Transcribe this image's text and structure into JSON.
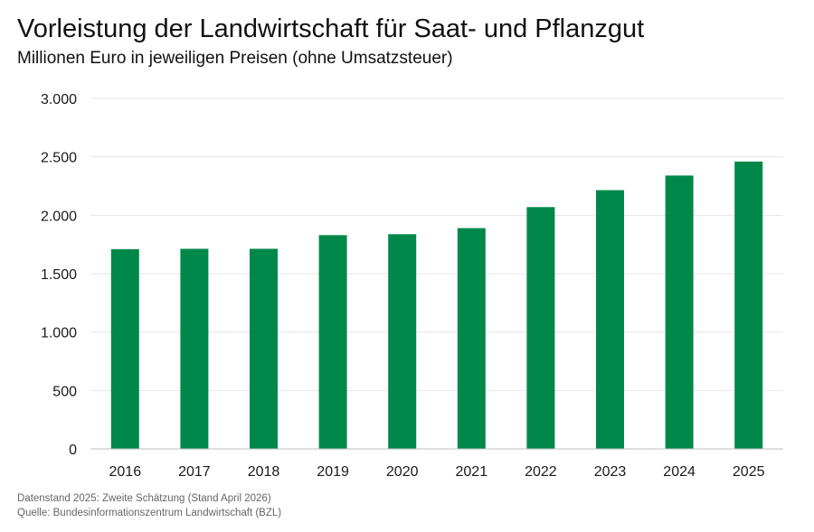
{
  "title": "Vorleistung der Landwirtschaft für Saat- und Pflanzgut",
  "subtitle": "Millionen Euro in jeweiligen Preisen (ohne Umsatzsteuer)",
  "footer": {
    "note": "Datenstand 2025: Zweite Schätzung (Stand April 2026)",
    "source": "Quelle: Bundesinformationszentrum Landwirtschaft (BZL)"
  },
  "colors": {
    "bar": "#00884a",
    "grid": "#e6e6e6",
    "axis": "#bdbdbd"
  },
  "chart_data": {
    "type": "bar",
    "title": "Vorleistung der Landwirtschaft für Saat- und Pflanzgut",
    "subtitle": "Millionen Euro in jeweiligen Preisen (ohne Umsatzsteuer)",
    "categories": [
      "2016",
      "2017",
      "2018",
      "2019",
      "2020",
      "2021",
      "2022",
      "2023",
      "2024",
      "2025"
    ],
    "values": [
      1710,
      1713,
      1713,
      1830,
      1838,
      1890,
      2070,
      2215,
      2340,
      2460
    ],
    "ylim": [
      0,
      3000
    ],
    "yticks": [
      0,
      500,
      1000,
      1500,
      2000,
      2500,
      3000
    ],
    "ytick_labels": [
      "0",
      "500",
      "1.000",
      "1.500",
      "2.000",
      "2.500",
      "3.000"
    ],
    "xlabel": "",
    "ylabel": "",
    "grid": true,
    "legend": "none"
  }
}
